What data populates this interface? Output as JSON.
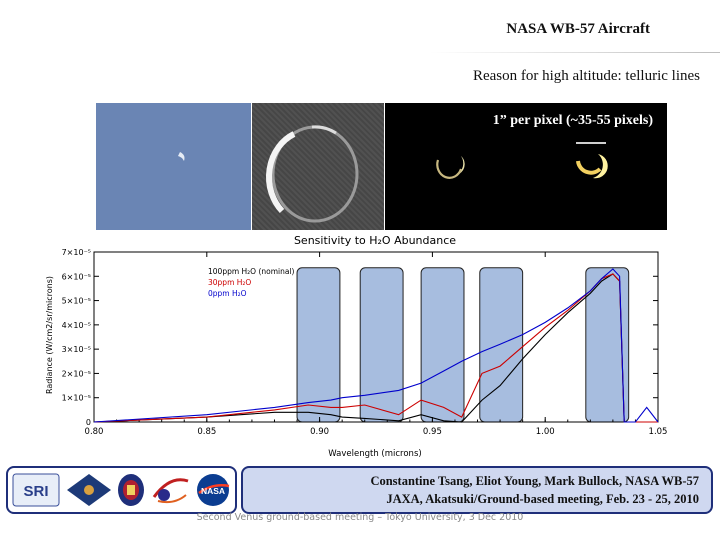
{
  "slide": {
    "title": "NASA WB-57 Aircraft",
    "subtitle": "Reason for high altitude: telluric lines",
    "image_note": "1” per pixel (~35-55 pixels)",
    "credits": {
      "line1": "Constantine Tsang, Eliot Young, Mark Bullock, NASA WB-57",
      "line2": "JAXA, Akatsuki/Ground-based meeting, Feb. 23 - 25, 2010"
    },
    "footer": "Second Venus ground-based meeting – Tokyo University, 3 Dec 2010",
    "logos": [
      "SRI",
      "Venus Express",
      "Oxford crest",
      "comet logo",
      "NASA"
    ]
  },
  "chart_data": {
    "type": "line",
    "title": "Sensitivity to H₂O Abundance",
    "xlabel": "Wavelength (microns)",
    "ylabel": "Radiance (W/cm2/sr/microns)",
    "xlim": [
      0.8,
      1.05
    ],
    "ylim": [
      0,
      7e-05
    ],
    "x_ticks": [
      "0.80",
      "0.85",
      "0.90",
      "0.95",
      "1.00",
      "1.05"
    ],
    "y_ticks": [
      "0",
      "1×10⁻⁵",
      "2×10⁻⁵",
      "3×10⁻⁵",
      "4×10⁻⁵",
      "5×10⁻⁵",
      "6×10⁻⁵",
      "7×10⁻⁵"
    ],
    "legend_position": "top-left",
    "series": [
      {
        "name": "100ppm H₂O (nominal)",
        "color": "#000000",
        "x": [
          0.8,
          0.85,
          0.88,
          0.895,
          0.905,
          0.91,
          0.92,
          0.935,
          0.945,
          0.955,
          0.963,
          0.972,
          0.98,
          0.99,
          1.0,
          1.01,
          1.02,
          1.025,
          1.03,
          1.033,
          1.035,
          1.04,
          1.05
        ],
        "y": [
          0.0,
          2e-06,
          4e-06,
          4e-06,
          3e-06,
          2e-06,
          1.5e-06,
          5e-07,
          3e-06,
          5e-07,
          0.0,
          9e-06,
          1.5e-05,
          2.6e-05,
          3.6e-05,
          4.5e-05,
          5.3e-05,
          5.8e-05,
          6.1e-05,
          5.8e-05,
          0.0,
          0.0,
          0.0
        ]
      },
      {
        "name": "30ppm H₂O",
        "color": "#cc0000",
        "x": [
          0.8,
          0.85,
          0.88,
          0.895,
          0.905,
          0.91,
          0.92,
          0.935,
          0.945,
          0.955,
          0.963,
          0.972,
          0.98,
          0.99,
          1.0,
          1.01,
          1.02,
          1.025,
          1.03,
          1.033,
          1.035,
          1.04,
          1.05
        ],
        "y": [
          0.0,
          2e-06,
          5e-06,
          7e-06,
          6e-06,
          6e-06,
          7e-06,
          3e-06,
          9e-06,
          6e-06,
          2e-06,
          2e-05,
          2.3e-05,
          3.1e-05,
          3.9e-05,
          4.6e-05,
          5.4e-05,
          5.9e-05,
          6.1e-05,
          5.8e-05,
          0.0,
          0.0,
          0.0
        ]
      },
      {
        "name": "0ppm H₂O",
        "color": "#0000cc",
        "x": [
          0.8,
          0.85,
          0.88,
          0.895,
          0.905,
          0.91,
          0.92,
          0.935,
          0.945,
          0.955,
          0.963,
          0.972,
          0.98,
          0.99,
          1.0,
          1.01,
          1.02,
          1.025,
          1.03,
          1.033,
          1.035,
          1.04,
          1.045,
          1.05
        ],
        "y": [
          0.0,
          3e-06,
          6e-06,
          8e-06,
          9e-06,
          1e-05,
          1.1e-05,
          1.3e-05,
          1.6e-05,
          2.1e-05,
          2.5e-05,
          2.9e-05,
          3.2e-05,
          3.6e-05,
          4.1e-05,
          4.7e-05,
          5.4e-05,
          5.9e-05,
          6.3e-05,
          6e-05,
          0.0,
          0.0,
          6e-06,
          0.0
        ]
      }
    ],
    "windows": [
      [
        0.89,
        0.909
      ],
      [
        0.918,
        0.937
      ],
      [
        0.945,
        0.964
      ],
      [
        0.971,
        0.99
      ],
      [
        1.018,
        1.037
      ]
    ]
  }
}
